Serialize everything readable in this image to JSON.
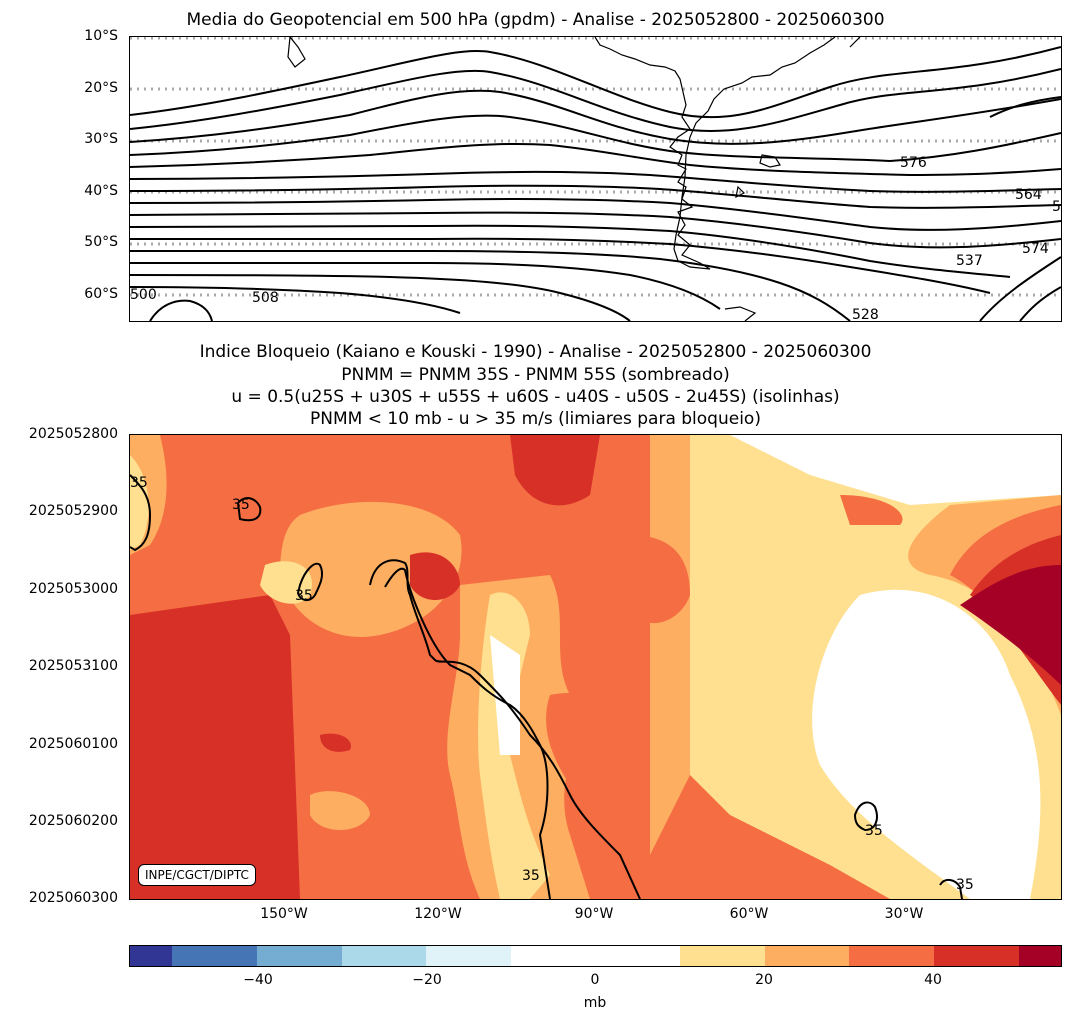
{
  "top_panel": {
    "title": "Media do Geopotencial em 500 hPa (gpdm) - Analise - 2025052800 - 2025060300",
    "lat_ticks": [
      "10°S",
      "20°S",
      "30°S",
      "40°S",
      "50°S",
      "60°S"
    ],
    "contour_labels": [
      "576",
      "564",
      "5",
      "537",
      "574",
      "508",
      "500",
      "528"
    ]
  },
  "bottom_panel": {
    "title_lines": [
      "Indice Bloqueio (Kaiano e Kouski - 1990) - Analise - 2025052800 - 2025060300",
      "PNMM = PNMM 35S - PNMM 55S (sombreado)",
      "u = 0.5(u25S + u30S + u55S + u60S - u40S - u50S - 2u45S) (isolinhas)",
      "PNMM < 10 mb - u > 35 m/s (limiares para bloqueio)"
    ],
    "time_ticks": [
      "2025052800",
      "2025052900",
      "2025053000",
      "2025053100",
      "2025060100",
      "2025060200",
      "2025060300"
    ],
    "lon_ticks": [
      "150°W",
      "120°W",
      "90°W",
      "60°W",
      "30°W"
    ],
    "contour_label": "35",
    "credit": "INPE/CGCT/DIPTC"
  },
  "colorbar": {
    "ticks": [
      "−40",
      "−20",
      "0",
      "20",
      "40"
    ],
    "label": "mb",
    "colors": [
      "#313695",
      "#4575b4",
      "#74add1",
      "#abd9e9",
      "#e0f3f8",
      "#ffffff",
      "#fee090",
      "#fdae61",
      "#f46d43",
      "#d73027",
      "#a50026"
    ]
  }
}
